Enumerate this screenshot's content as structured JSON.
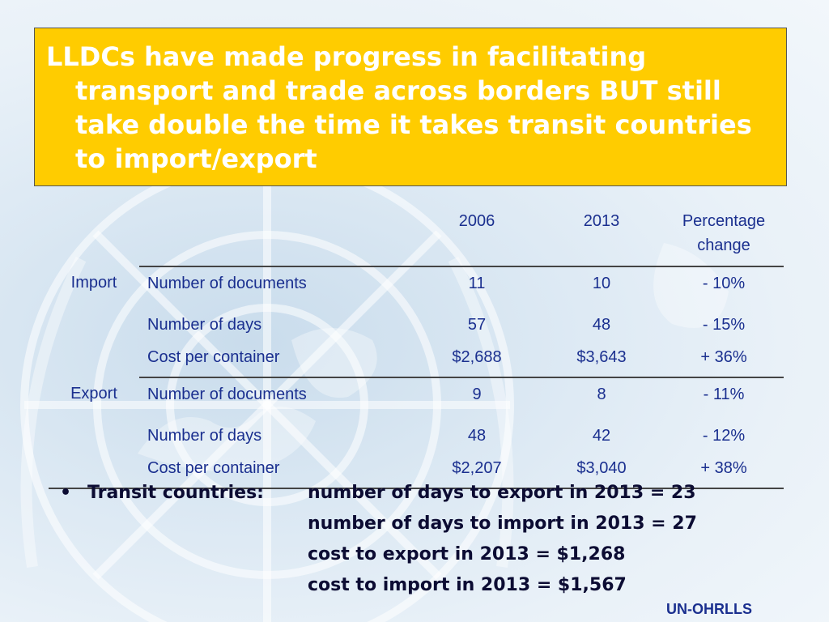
{
  "title": "LLDCs have made progress in facilitating transport and trade across borders BUT still take double the time it takes transit countries to import/export",
  "table": {
    "headers": {
      "year1": "2006",
      "year2": "2013",
      "pct": "Percentage change"
    },
    "groups": [
      {
        "category": "Import",
        "rows": [
          {
            "item": "Number of documents",
            "y2006": "11",
            "y2013": "10",
            "pct": "- 10%"
          },
          {
            "item": "Number of days",
            "y2006": "57",
            "y2013": "48",
            "pct": "- 15%"
          },
          {
            "item": "Cost per container",
            "y2006": "$2,688",
            "y2013": "$3,643",
            "pct": "+ 36%"
          }
        ]
      },
      {
        "category": "Export",
        "rows": [
          {
            "item": "Number of documents",
            "y2006": "9",
            "y2013": "8",
            "pct": "- 11%"
          },
          {
            "item": "Number of days",
            "y2006": "48",
            "y2013": "42",
            "pct": "- 12%"
          },
          {
            "item": "Cost per container",
            "y2006": "$2,207",
            "y2013": "$3,040",
            "pct": "+ 38%"
          }
        ]
      }
    ]
  },
  "bullet": {
    "marker": "•",
    "label": "Transit countries:",
    "lines": [
      "number of days to export in 2013 = 23",
      "number of days to import in 2013 = 27",
      "cost to export in 2013 = $1,268",
      "cost to import in 2013 = $1,567"
    ]
  },
  "footer": "UN-OHRLLS",
  "colors": {
    "title_bg": "#ffcc00",
    "title_text": "#ffffff",
    "table_text": "#1a2f8f",
    "bullet_text": "#0c0c33"
  },
  "background_icon": "un-emblem-icon"
}
